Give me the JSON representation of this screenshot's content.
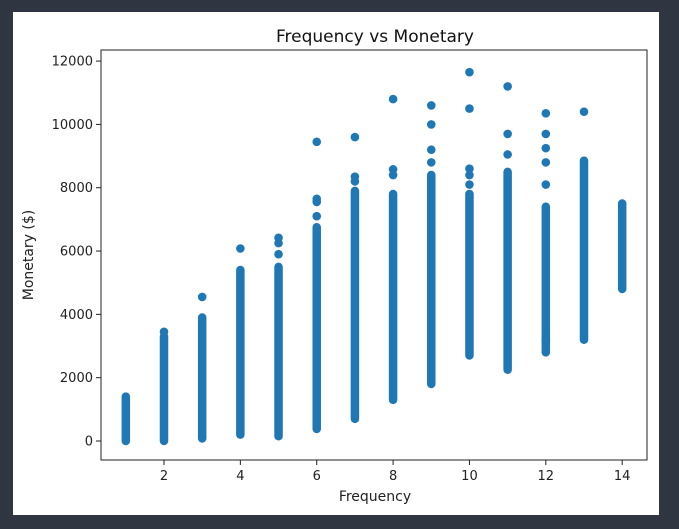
{
  "chart_data": {
    "type": "scatter",
    "title": "Frequency vs Monetary",
    "xlabel": "Frequency",
    "ylabel": "Monetary ($)",
    "xlim": [
      0.35,
      14.65
    ],
    "ylim": [
      -600,
      12350
    ],
    "xticks": [
      2,
      4,
      6,
      8,
      10,
      12,
      14
    ],
    "yticks": [
      0,
      2000,
      4000,
      6000,
      8000,
      10000,
      12000
    ],
    "ytick_labels": [
      "0",
      "2000",
      "4000",
      "6000",
      "8000",
      "10000",
      "12000"
    ],
    "grid": false,
    "marker_color": "#1f77b4",
    "series": [
      {
        "points": [
          {
            "x": 1,
            "range": [
              0,
              1400
            ],
            "outliers": []
          },
          {
            "x": 2,
            "range": [
              0,
              3300
            ],
            "outliers": [
              3450
            ]
          },
          {
            "x": 3,
            "range": [
              80,
              3900
            ],
            "outliers": [
              4550
            ]
          },
          {
            "x": 4,
            "range": [
              200,
              5400
            ],
            "outliers": [
              6080
            ]
          },
          {
            "x": 5,
            "range": [
              150,
              5500
            ],
            "outliers": [
              5900,
              6250,
              6420
            ]
          },
          {
            "x": 6,
            "range": [
              380,
              6750
            ],
            "outliers": [
              7100,
              7550,
              7650,
              9450
            ]
          },
          {
            "x": 7,
            "range": [
              700,
              7900
            ],
            "outliers": [
              8200,
              8350,
              9600
            ]
          },
          {
            "x": 8,
            "range": [
              1300,
              7800
            ],
            "outliers": [
              8400,
              8580,
              10800
            ]
          },
          {
            "x": 9,
            "range": [
              1800,
              8400
            ],
            "outliers": [
              8800,
              9200,
              10000,
              10600
            ]
          },
          {
            "x": 10,
            "range": [
              2700,
              7800
            ],
            "outliers": [
              8100,
              8400,
              8600,
              10500,
              11650
            ]
          },
          {
            "x": 11,
            "range": [
              2250,
              8500
            ],
            "outliers": [
              9050,
              9700,
              11200
            ]
          },
          {
            "x": 12,
            "range": [
              2800,
              7400
            ],
            "outliers": [
              3200,
              8100,
              8800,
              9250,
              9700,
              10350
            ]
          },
          {
            "x": 13,
            "range": [
              3200,
              8850
            ],
            "outliers": [
              10400
            ]
          },
          {
            "x": 14,
            "range": [
              4800,
              7500
            ],
            "outliers": []
          }
        ]
      }
    ]
  }
}
